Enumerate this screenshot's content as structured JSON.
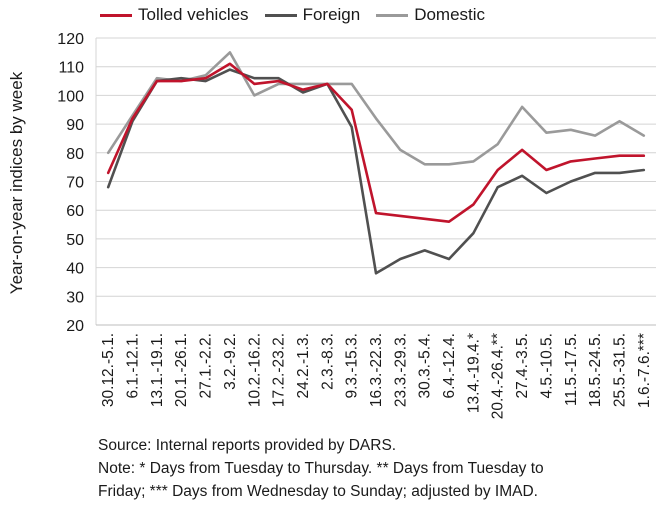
{
  "chart_data": {
    "type": "line",
    "ylabel": "Year-on-year indices by week",
    "ylim": [
      20,
      120
    ],
    "yticks": [
      20,
      30,
      40,
      50,
      60,
      70,
      80,
      90,
      100,
      110,
      120
    ],
    "legend_position": "top",
    "grid": "horizontal",
    "categories": [
      "30.12.-5.1.",
      "6.1.-12.1.",
      "13.1.-19.1.",
      "20.1.-26.1.",
      "27.1.-2.2.",
      "3.2.-9.2.",
      "10.2.-16.2.",
      "17.2.-23.2.",
      "24.2.-1.3.",
      "2.3.-8.3.",
      "9.3.-15.3.",
      "16.3.-22.3.",
      "23.3.-29.3.",
      "30.3.-5.4.",
      "6.4.-12.4.",
      "13.4.-19.4.*",
      "20.4.-26.4.**",
      "27.4.-3.5.",
      "4.5.-10.5.",
      "11.5.-17.5.",
      "18.5.-24.5.",
      "25.5.-31.5.",
      "1.6.-7.6.***"
    ],
    "series": [
      {
        "name": "Tolled vehicles",
        "color": "#c0142c",
        "values": [
          73,
          92,
          105,
          105,
          106,
          111,
          104,
          105,
          102,
          104,
          95,
          59,
          58,
          57,
          56,
          62,
          74,
          81,
          74,
          77,
          78,
          79,
          79
        ]
      },
      {
        "name": "Foreign",
        "color": "#505050",
        "values": [
          68,
          91,
          105,
          106,
          105,
          109,
          106,
          106,
          101,
          104,
          89,
          38,
          43,
          46,
          43,
          52,
          68,
          72,
          66,
          70,
          73,
          73,
          74
        ]
      },
      {
        "name": "Domestic",
        "color": "#9a9a9a",
        "values": [
          80,
          93,
          106,
          105,
          107,
          115,
          100,
          104,
          104,
          104,
          104,
          92,
          81,
          76,
          76,
          77,
          83,
          96,
          87,
          88,
          86,
          91,
          86
        ]
      }
    ]
  },
  "notes": {
    "source": "Source: Internal reports provided by DARS.",
    "note_line1": "Note: * Days from Tuesday to Thursday. ** Days from Tuesday to",
    "note_line2": "Friday; *** Days from Wednesday to Sunday; adjusted by IMAD."
  }
}
